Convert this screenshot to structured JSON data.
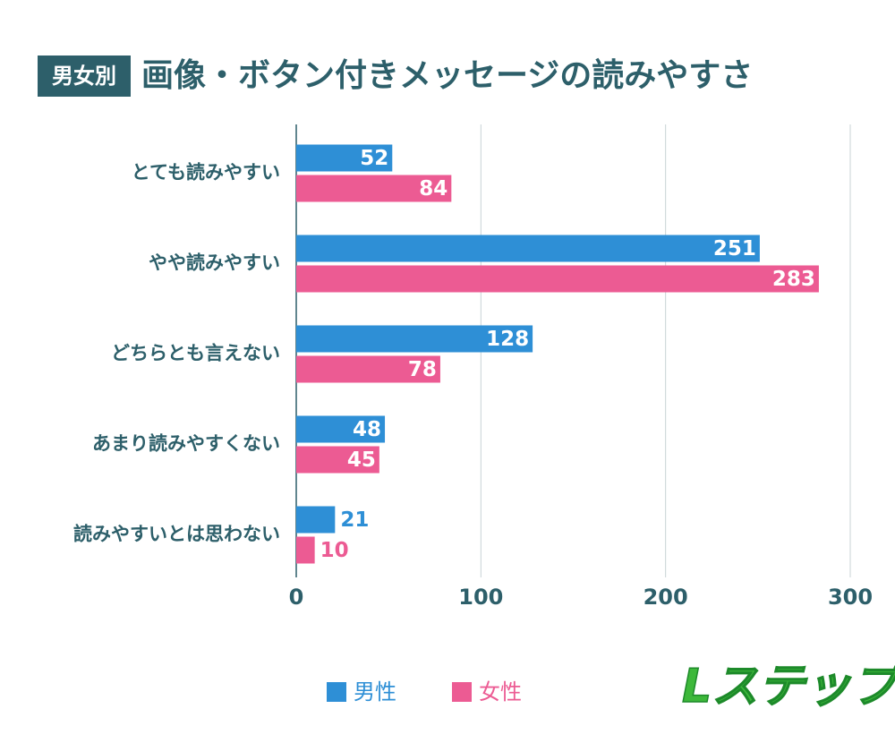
{
  "chart_data": {
    "type": "bar",
    "orientation": "horizontal",
    "badge": "男女別",
    "title": "画像・ボタン付きメッセージの読みやすさ",
    "categories": [
      "とても読みやすい",
      "やや読みやすい",
      "どちらとも言えない",
      "あまり読みやすくない",
      "読みやすいとは思わない"
    ],
    "series": [
      {
        "name": "男性",
        "color": "#2e8fd6",
        "values": [
          52,
          251,
          128,
          48,
          21
        ]
      },
      {
        "name": "女性",
        "color": "#ec5b93",
        "values": [
          84,
          283,
          78,
          45,
          10
        ]
      }
    ],
    "xlim": [
      0,
      300
    ],
    "xticks": [
      0,
      100,
      200,
      300
    ],
    "grid": true,
    "legend": "bottom",
    "logo": "Lステップ"
  }
}
